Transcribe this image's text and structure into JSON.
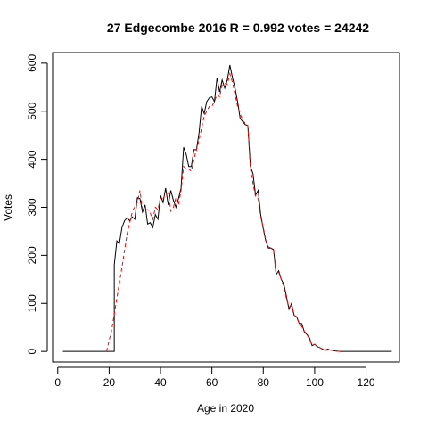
{
  "chart_data": {
    "type": "line",
    "title": "27 Edgecombe 2016 R = 0.992 votes = 24242",
    "xlabel": "Age in 2020",
    "ylabel": "Votes",
    "xlim": [
      -2,
      133
    ],
    "ylim": [
      -22,
      622
    ],
    "x_ticks": [
      0,
      20,
      40,
      60,
      80,
      100,
      120
    ],
    "y_ticks": [
      0,
      100,
      200,
      300,
      400,
      500,
      600
    ],
    "grid": false,
    "series": [
      {
        "style": "solid",
        "color": "#000000",
        "points": [
          [
            2,
            0
          ],
          [
            21,
            0
          ],
          [
            22,
            0
          ],
          [
            22,
            180
          ],
          [
            23,
            230
          ],
          [
            24,
            225
          ],
          [
            25,
            258
          ],
          [
            26,
            272
          ],
          [
            27,
            278
          ],
          [
            28,
            272
          ],
          [
            29,
            280
          ],
          [
            30,
            275
          ],
          [
            31,
            320
          ],
          [
            32,
            318
          ],
          [
            33,
            290
          ],
          [
            34,
            305
          ],
          [
            35,
            265
          ],
          [
            36,
            268
          ],
          [
            37,
            258
          ],
          [
            38,
            285
          ],
          [
            39,
            275
          ],
          [
            40,
            325
          ],
          [
            41,
            310
          ],
          [
            42,
            340
          ],
          [
            43,
            305
          ],
          [
            44,
            335
          ],
          [
            45,
            315
          ],
          [
            46,
            300
          ],
          [
            47,
            318
          ],
          [
            48,
            340
          ],
          [
            49,
            425
          ],
          [
            50,
            410
          ],
          [
            51,
            385
          ],
          [
            52,
            385
          ],
          [
            53,
            420
          ],
          [
            54,
            420
          ],
          [
            55,
            455
          ],
          [
            56,
            510
          ],
          [
            57,
            495
          ],
          [
            58,
            520
          ],
          [
            59,
            528
          ],
          [
            60,
            530
          ],
          [
            61,
            520
          ],
          [
            62,
            570
          ],
          [
            63,
            540
          ],
          [
            64,
            565
          ],
          [
            65,
            548
          ],
          [
            66,
            565
          ],
          [
            67,
            596
          ],
          [
            68,
            570
          ],
          [
            69,
            548
          ],
          [
            70,
            520
          ],
          [
            71,
            485
          ],
          [
            72,
            478
          ],
          [
            73,
            472
          ],
          [
            74,
            470
          ],
          [
            75,
            385
          ],
          [
            76,
            370
          ],
          [
            77,
            325
          ],
          [
            78,
            335
          ],
          [
            79,
            285
          ],
          [
            80,
            255
          ],
          [
            81,
            230
          ],
          [
            82,
            215
          ],
          [
            83,
            215
          ],
          [
            84,
            212
          ],
          [
            85,
            160
          ],
          [
            86,
            168
          ],
          [
            87,
            150
          ],
          [
            88,
            140
          ],
          [
            89,
            115
          ],
          [
            90,
            88
          ],
          [
            91,
            100
          ],
          [
            92,
            75
          ],
          [
            93,
            72
          ],
          [
            94,
            58
          ],
          [
            95,
            58
          ],
          [
            96,
            40
          ],
          [
            97,
            35
          ],
          [
            98,
            28
          ],
          [
            99,
            12
          ],
          [
            100,
            15
          ],
          [
            101,
            10
          ],
          [
            102,
            8
          ],
          [
            103,
            5
          ],
          [
            104,
            2
          ],
          [
            105,
            5
          ],
          [
            106,
            3
          ],
          [
            107,
            2
          ],
          [
            108,
            1
          ],
          [
            110,
            0
          ],
          [
            130,
            0
          ]
        ]
      },
      {
        "style": "dashed",
        "color": "#ff0000",
        "points": [
          [
            19,
            0
          ],
          [
            21,
            45
          ],
          [
            23,
            110
          ],
          [
            25,
            175
          ],
          [
            27,
            245
          ],
          [
            29,
            290
          ],
          [
            30,
            302
          ],
          [
            31,
            310
          ],
          [
            32,
            335
          ],
          [
            33,
            295
          ],
          [
            34,
            295
          ],
          [
            35,
            295
          ],
          [
            36,
            288
          ],
          [
            37,
            275
          ],
          [
            38,
            300
          ],
          [
            39,
            295
          ],
          [
            40,
            320
          ],
          [
            41,
            318
          ],
          [
            42,
            328
          ],
          [
            43,
            330
          ],
          [
            44,
            292
          ],
          [
            45,
            300
          ],
          [
            46,
            320
          ],
          [
            47,
            305
          ],
          [
            48,
            335
          ],
          [
            49,
            385
          ],
          [
            50,
            380
          ],
          [
            51,
            380
          ],
          [
            52,
            375
          ],
          [
            53,
            400
          ],
          [
            54,
            420
          ],
          [
            55,
            440
          ],
          [
            56,
            465
          ],
          [
            57,
            490
          ],
          [
            58,
            500
          ],
          [
            59,
            510
          ],
          [
            60,
            510
          ],
          [
            61,
            520
          ],
          [
            62,
            535
          ],
          [
            63,
            530
          ],
          [
            64,
            555
          ],
          [
            65,
            558
          ],
          [
            66,
            556
          ],
          [
            67,
            578
          ],
          [
            68,
            560
          ],
          [
            69,
            535
          ],
          [
            70,
            510
          ],
          [
            71,
            495
          ],
          [
            72,
            480
          ],
          [
            73,
            475
          ],
          [
            74,
            470
          ],
          [
            75,
            380
          ],
          [
            76,
            350
          ],
          [
            77,
            322
          ],
          [
            78,
            318
          ],
          [
            79,
            280
          ],
          [
            80,
            258
          ],
          [
            81,
            232
          ],
          [
            82,
            218
          ],
          [
            83,
            215
          ],
          [
            84,
            210
          ],
          [
            85,
            162
          ],
          [
            86,
            165
          ],
          [
            87,
            150
          ],
          [
            88,
            135
          ],
          [
            89,
            110
          ],
          [
            90,
            92
          ],
          [
            91,
            95
          ],
          [
            92,
            76
          ],
          [
            93,
            70
          ],
          [
            94,
            58
          ],
          [
            95,
            52
          ],
          [
            96,
            42
          ],
          [
            97,
            35
          ],
          [
            98,
            25
          ],
          [
            99,
            13
          ],
          [
            100,
            15
          ],
          [
            101,
            10
          ],
          [
            102,
            8
          ],
          [
            103,
            5
          ],
          [
            104,
            3
          ],
          [
            105,
            4
          ],
          [
            106,
            3
          ],
          [
            107,
            2
          ],
          [
            108,
            1
          ],
          [
            110,
            0
          ]
        ]
      }
    ]
  }
}
